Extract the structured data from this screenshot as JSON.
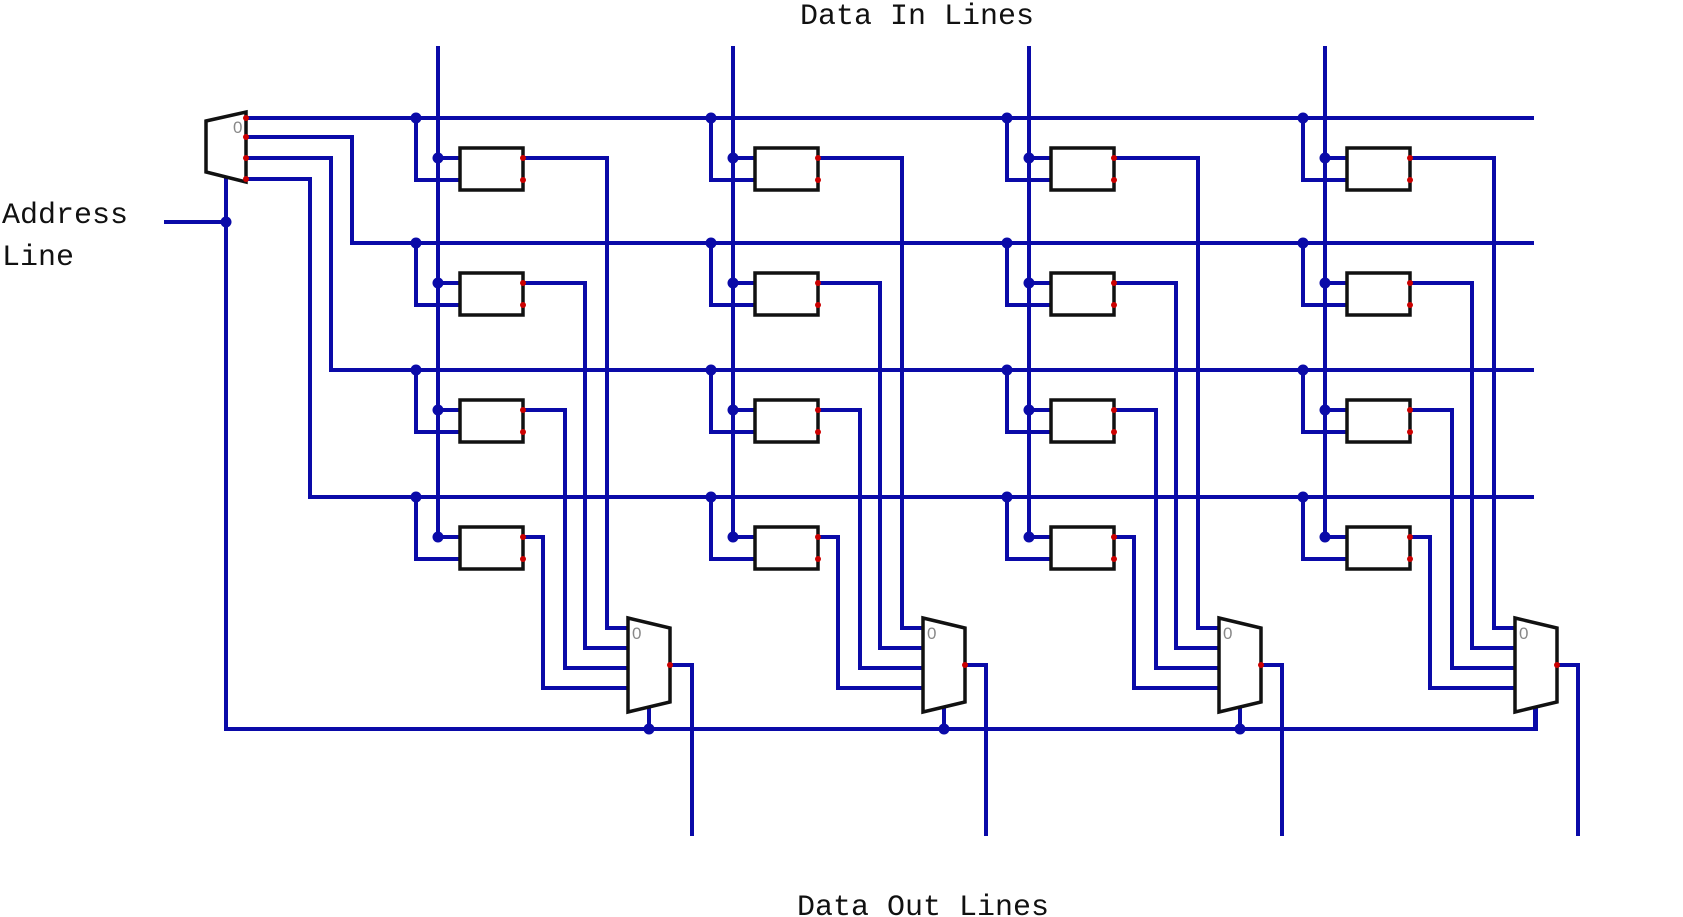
{
  "labels": {
    "data_in": "Data In Lines",
    "data_out": "Data Out Lines",
    "address_line1": "Address",
    "address_line2": "Line",
    "mux_select_zero": "0"
  },
  "colors": {
    "wire": "#0a0aa8",
    "component_outline": "#111111",
    "pin": "#cc0000",
    "select_label": "#888888"
  },
  "grid": {
    "columns": 4,
    "rows": 4
  }
}
